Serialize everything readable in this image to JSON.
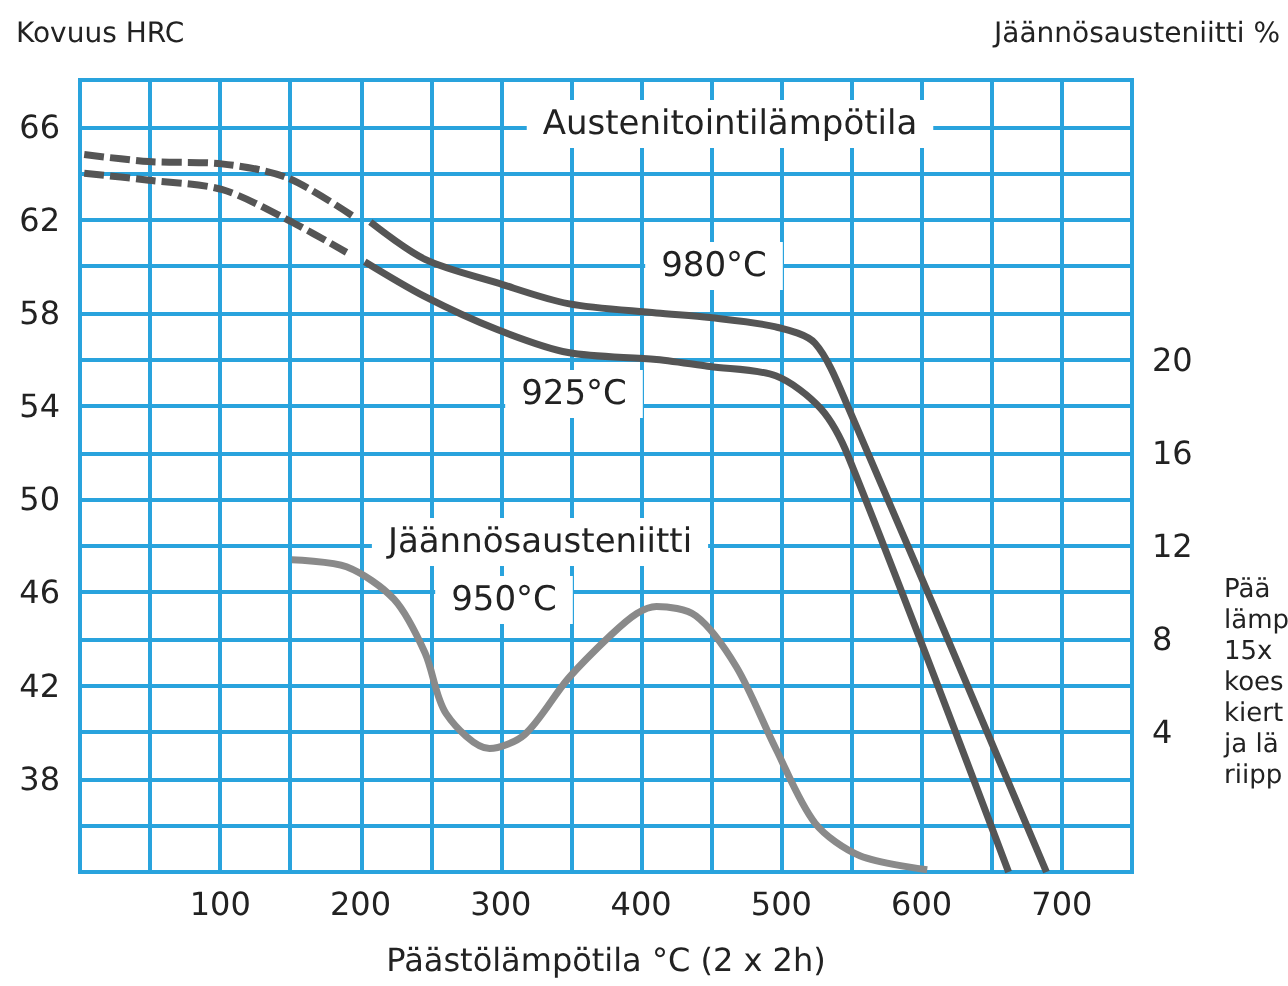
{
  "chart_data": {
    "type": "line",
    "ylabel": "Kovuus HRC",
    "y2label": "Jäännösausteniitti %",
    "xlabel": "Päästölämpötila °C (2 x 2h)",
    "annotations": [
      "Austenitointilämpötila",
      "980°C",
      "925°C",
      "Jäännösausteniitti",
      "950°C",
      "Pää\nlämp\n15x\nkoes\nkiert\nja lä\nriipp"
    ],
    "xlim": [
      0,
      750
    ],
    "xticks": [
      {
        "value": 50,
        "label": null
      },
      100,
      {
        "value": 150,
        "label": null
      },
      200,
      {
        "value": 250,
        "label": null
      },
      300,
      {
        "value": 350,
        "label": null
      },
      400,
      {
        "value": 450,
        "label": null
      },
      500,
      {
        "value": 550,
        "label": null
      },
      600,
      {
        "value": 650,
        "label": null
      },
      700
    ],
    "ylim": [
      34,
      68
    ],
    "yticks": [
      {
        "value": 36,
        "label": null
      },
      38,
      {
        "value": 40,
        "label": null
      },
      42,
      {
        "value": 44,
        "label": null
      },
      46,
      {
        "value": 48,
        "label": null
      },
      50,
      {
        "value": 52,
        "label": null
      },
      54,
      {
        "value": 56,
        "label": null
      },
      58,
      {
        "value": 60,
        "label": null
      },
      62,
      {
        "value": 64,
        "label": null
      },
      66
    ],
    "y2lim": [
      -2,
      32
    ],
    "y2ticks": [
      4,
      8,
      12,
      16,
      20
    ],
    "grid": true,
    "marker": "none",
    "series": [
      {
        "color": "#555555",
        "line_style": "dashed",
        "x": [
          3,
          49,
          101,
          148,
          196
        ],
        "values": [
          64.8,
          64.5,
          64.4,
          63.8,
          62.1
        ]
      },
      {
        "color": "#555555",
        "line_style": "dashed",
        "x": [
          3,
          49,
          101,
          148,
          190
        ],
        "values": [
          64.0,
          63.7,
          63.3,
          62.0,
          60.6
        ]
      },
      {
        "color": "#555555",
        "line_style": "solid",
        "x": [
          207,
          246,
          297,
          348,
          411,
          449,
          496,
          524,
          548,
          689
        ],
        "values": [
          61.9,
          60.3,
          59.3,
          58.4,
          58.0,
          57.8,
          57.4,
          56.7,
          53.9,
          34.0
        ]
      },
      {
        "color": "#555555",
        "line_style": "solid",
        "x": [
          203,
          246,
          297,
          348,
          411,
          449,
          496,
          528,
          548,
          662
        ],
        "values": [
          60.2,
          58.7,
          57.3,
          56.3,
          56.0,
          55.7,
          55.3,
          53.9,
          51.8,
          34.0
        ]
      },
      {
        "color": "#8a8a8a",
        "line_style": "solid",
        "axis": "y2",
        "x": [
          151,
          190,
          224,
          246,
          261,
          292,
          317,
          348,
          379,
          397,
          411,
          439,
          468,
          496,
          524,
          556,
          604
        ],
        "values": [
          11.4,
          11.1,
          9.7,
          7.4,
          4.8,
          3.3,
          3.9,
          6.3,
          8.2,
          9.1,
          9.4,
          9.0,
          6.8,
          3.3,
          0.1,
          -1.3,
          -1.9
        ]
      }
    ]
  }
}
